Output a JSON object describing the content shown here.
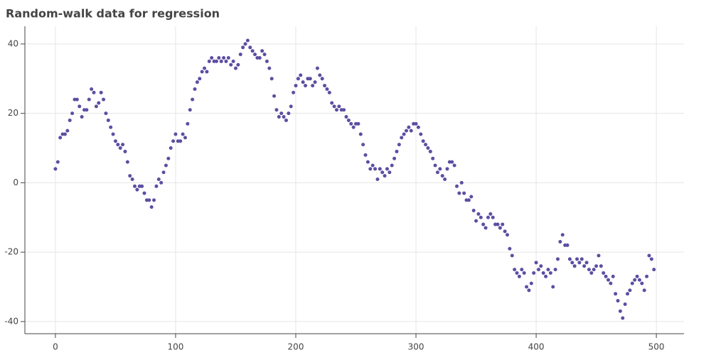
{
  "chart_data": {
    "type": "scatter",
    "title": "Random-walk data for regression",
    "color": "#5d4ea1",
    "grid": true,
    "xlim": [
      -25.4,
      523
    ],
    "ylim": [
      -43.5,
      45.1
    ],
    "xticks": [
      0,
      100,
      200,
      300,
      400,
      500
    ],
    "yticks": [
      -40,
      -20,
      0,
      20,
      40
    ],
    "x": [
      0,
      2,
      4,
      6,
      8,
      10,
      12,
      14,
      16,
      18,
      20,
      22,
      24,
      26,
      28,
      30,
      32,
      34,
      36,
      38,
      40,
      42,
      44,
      46,
      48,
      50,
      52,
      54,
      56,
      58,
      60,
      62,
      64,
      66,
      68,
      70,
      72,
      74,
      76,
      78,
      80,
      82,
      84,
      86,
      88,
      90,
      92,
      94,
      96,
      98,
      100,
      102,
      104,
      106,
      108,
      110,
      112,
      114,
      116,
      118,
      120,
      122,
      124,
      126,
      128,
      130,
      132,
      134,
      136,
      138,
      140,
      142,
      144,
      146,
      148,
      150,
      152,
      154,
      156,
      158,
      160,
      162,
      164,
      166,
      168,
      170,
      172,
      174,
      176,
      178,
      180,
      182,
      184,
      186,
      188,
      190,
      192,
      194,
      196,
      198,
      200,
      202,
      204,
      206,
      208,
      210,
      212,
      214,
      216,
      218,
      220,
      222,
      224,
      226,
      228,
      230,
      232,
      234,
      236,
      238,
      240,
      242,
      244,
      246,
      248,
      250,
      252,
      254,
      256,
      258,
      260,
      262,
      264,
      266,
      268,
      270,
      272,
      274,
      276,
      278,
      280,
      282,
      284,
      286,
      288,
      290,
      292,
      294,
      296,
      298,
      300,
      302,
      304,
      306,
      308,
      310,
      312,
      314,
      316,
      318,
      320,
      322,
      324,
      326,
      328,
      330,
      332,
      334,
      336,
      338,
      340,
      342,
      344,
      346,
      348,
      350,
      352,
      354,
      356,
      358,
      360,
      362,
      364,
      366,
      368,
      370,
      372,
      374,
      376,
      378,
      380,
      382,
      384,
      386,
      388,
      390,
      392,
      394,
      396,
      398,
      400,
      402,
      404,
      406,
      408,
      410,
      412,
      414,
      416,
      418,
      420,
      422,
      424,
      426,
      428,
      430,
      432,
      434,
      436,
      438,
      440,
      442,
      444,
      446,
      448,
      450,
      452,
      454,
      456,
      458,
      460,
      462,
      464,
      466,
      468,
      470,
      472,
      474,
      476,
      478,
      480,
      482,
      484,
      486,
      488,
      490,
      492,
      494,
      496,
      498
    ],
    "values": [
      4,
      6,
      13,
      14,
      14,
      15,
      18,
      20,
      24,
      24,
      22,
      19,
      21,
      21,
      24,
      27,
      26,
      22,
      23,
      26,
      24,
      20,
      18,
      16,
      14,
      12,
      11,
      10,
      11,
      9,
      6,
      2,
      1,
      -1,
      -2,
      -1,
      -1,
      -3,
      -5,
      -5,
      -7,
      -5,
      -1,
      1,
      0,
      3,
      5,
      7,
      10,
      12,
      14,
      12,
      12,
      14,
      13,
      17,
      21,
      24,
      27,
      29,
      30,
      32,
      33,
      32,
      35,
      36,
      35,
      35,
      36,
      35,
      36,
      35,
      36,
      34,
      35,
      33,
      34,
      37,
      39,
      40,
      41,
      39,
      38,
      37,
      36,
      36,
      38,
      37,
      35,
      33,
      30,
      25,
      21,
      19,
      20,
      19,
      18,
      20,
      22,
      26,
      28,
      30,
      31,
      29,
      28,
      30,
      30,
      28,
      29,
      33,
      31,
      30,
      28,
      27,
      26,
      23,
      22,
      21,
      22,
      21,
      21,
      19,
      18,
      17,
      16,
      17,
      17,
      14,
      11,
      8,
      6,
      4,
      5,
      4,
      1,
      4,
      3,
      2,
      4,
      3,
      5,
      7,
      9,
      11,
      13,
      14,
      15,
      16,
      15,
      17,
      17,
      16,
      14,
      12,
      11,
      10,
      9,
      7,
      5,
      3,
      4,
      2,
      1,
      4,
      6,
      6,
      5,
      -1,
      -3,
      0,
      -3,
      -5,
      -5,
      -4,
      -8,
      -11,
      -9,
      -10,
      -12,
      -13,
      -10,
      -9,
      -10,
      -12,
      -12,
      -13,
      -12,
      -14,
      -15,
      -19,
      -21,
      -25,
      -26,
      -27,
      -25,
      -26,
      -30,
      -31,
      -29,
      -26,
      -23,
      -25,
      -24,
      -26,
      -27,
      -25,
      -26,
      -30,
      -25,
      -22,
      -17,
      -15,
      -18,
      -18,
      -22,
      -23,
      -24,
      -22,
      -23,
      -22,
      -24,
      -23,
      -25,
      -26,
      -25,
      -24,
      -21,
      -24,
      -26,
      -27,
      -28,
      -29,
      -27,
      -32,
      -34,
      -37,
      -39,
      -35,
      -32,
      -31,
      -29,
      -28,
      -27,
      -28,
      -29,
      -31,
      -27,
      -21,
      -22,
      -25
    ]
  }
}
